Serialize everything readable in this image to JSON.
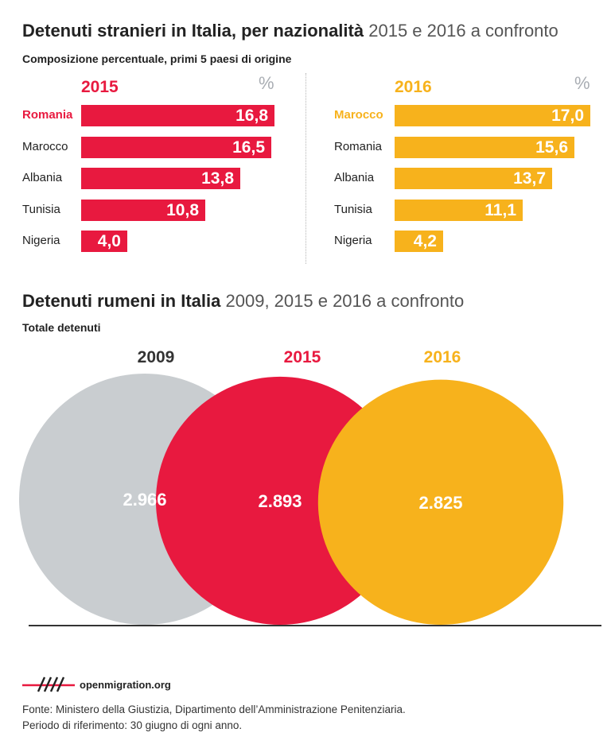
{
  "title1": {
    "main": "Detenuti stranieri in Italia, per nazionalità",
    "rest": "2015 e 2016 a confronto"
  },
  "subtitle1": "Composizione percentuale, primi 5 paesi di origine",
  "title2": {
    "main": "Detenuti rumeni in Italia",
    "rest": "2009, 2015 e 2016 a confronto"
  },
  "subtitle2": "Totale detenuti",
  "colors": {
    "red": "#e8193f",
    "yellow": "#f7b21c",
    "grey": "#c9cdd0"
  },
  "chart_data": [
    {
      "type": "bar",
      "orientation": "horizontal",
      "year": "2015",
      "unit": "%",
      "categories": [
        "Romania",
        "Marocco",
        "Albania",
        "Tunisia",
        "Nigeria"
      ],
      "values": [
        16.8,
        16.5,
        13.8,
        10.8,
        4.0
      ],
      "labels": [
        "16,8",
        "16,5",
        "13,8",
        "10,8",
        "4,0"
      ],
      "highlight": "Romania"
    },
    {
      "type": "bar",
      "orientation": "horizontal",
      "year": "2016",
      "unit": "%",
      "categories": [
        "Marocco",
        "Romania",
        "Albania",
        "Tunisia",
        "Nigeria"
      ],
      "values": [
        17.0,
        15.6,
        13.7,
        11.1,
        4.2
      ],
      "labels": [
        "17,0",
        "15,6",
        "13,7",
        "11,1",
        "4,2"
      ],
      "highlight": "Marocco"
    },
    {
      "type": "bubble",
      "categories": [
        "2009",
        "2015",
        "2016"
      ],
      "values": [
        2966,
        2893,
        2825
      ],
      "labels": [
        "2.966",
        "2.893",
        "2.825"
      ]
    }
  ],
  "logo": {
    "text": "openmigration.org",
    "icon": "openmigration-logo-icon"
  },
  "source": {
    "line1": "Fonte: Ministero della Giustizia, Dipartimento dell’Amministrazione Penitenziaria.",
    "line2": "Periodo di riferimento: 30 giugno di ogni anno."
  }
}
